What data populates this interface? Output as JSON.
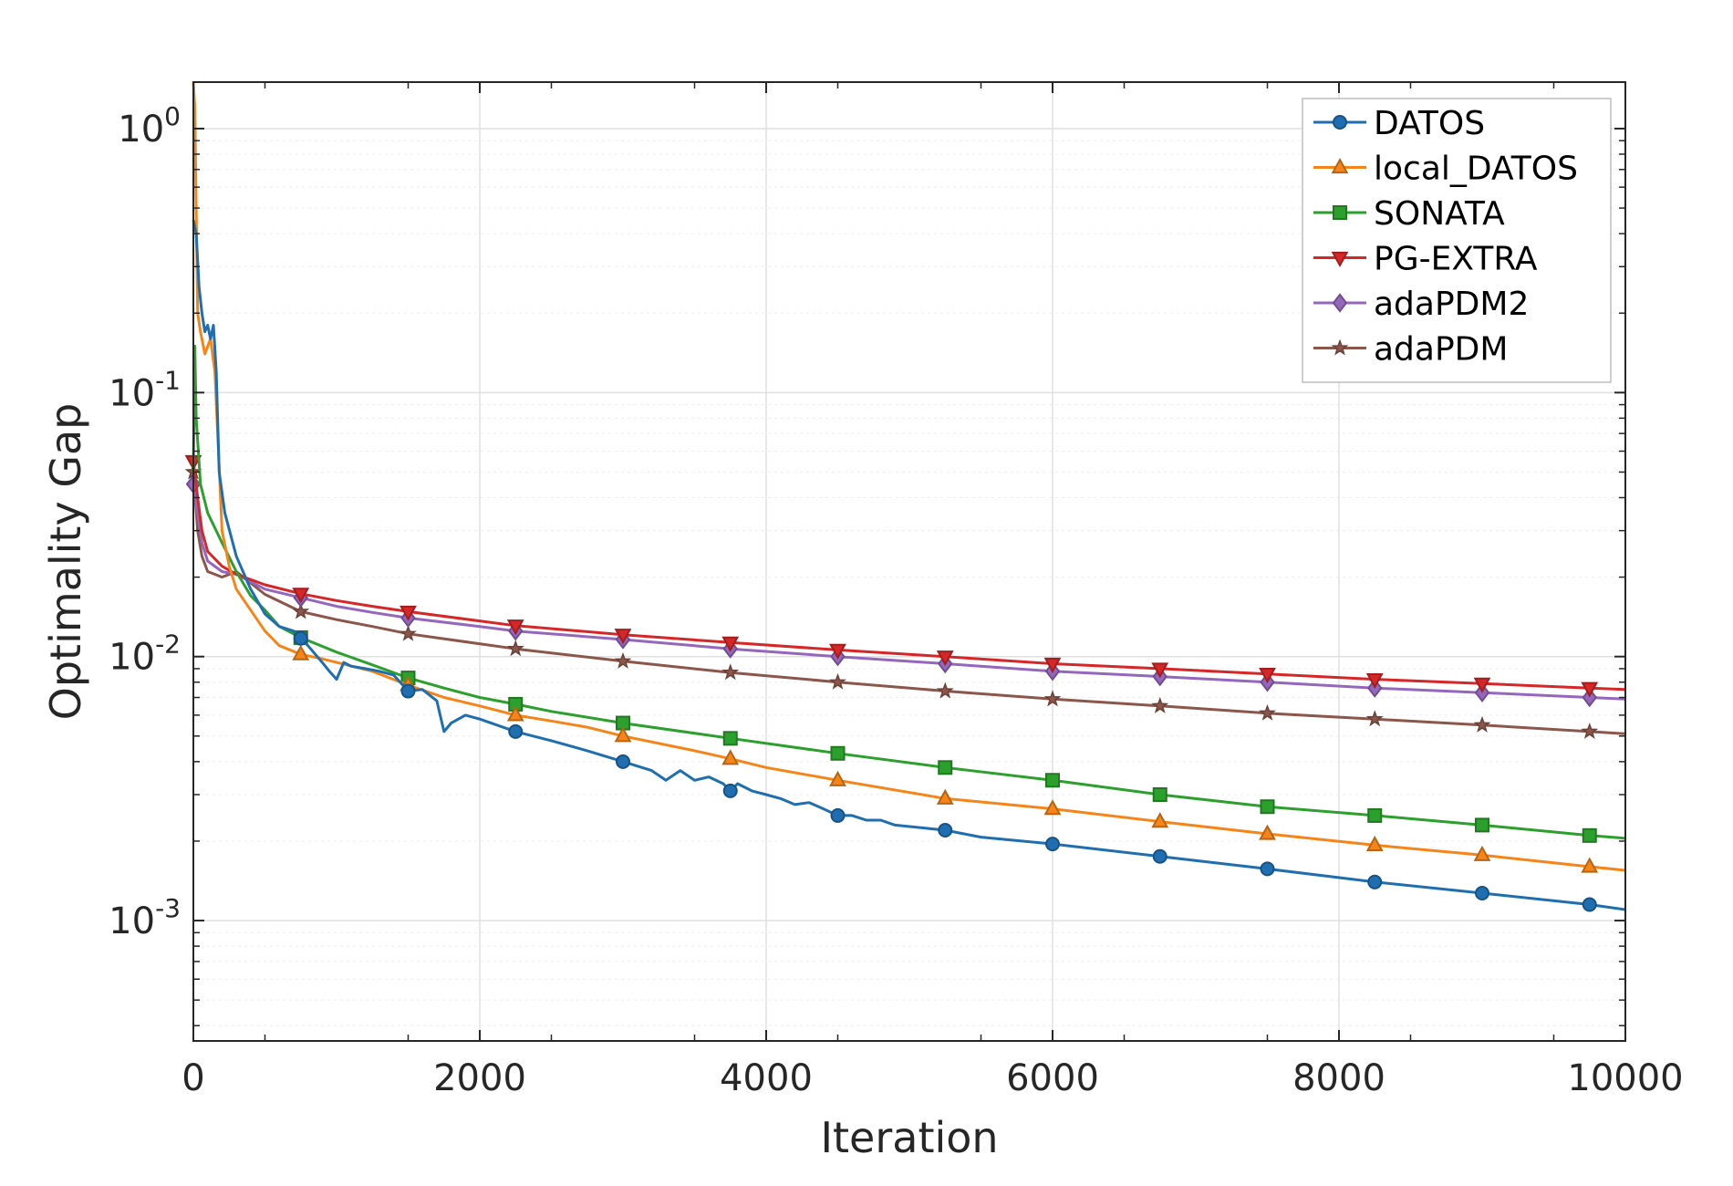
{
  "chart_data": {
    "type": "line",
    "title": "",
    "xlabel": "Iteration",
    "ylabel": "Optimality Gap",
    "x_scale": "linear",
    "y_scale": "log",
    "xlim": [
      0,
      10000
    ],
    "ylim": [
      0.00035,
      1.5
    ],
    "grid": true,
    "legend_position": "top-right",
    "x_ticks": [
      {
        "value": 0,
        "label": "0"
      },
      {
        "value": 2000,
        "label": "2000"
      },
      {
        "value": 4000,
        "label": "4000"
      },
      {
        "value": 6000,
        "label": "6000"
      },
      {
        "value": 8000,
        "label": "8000"
      },
      {
        "value": 10000,
        "label": "10000"
      }
    ],
    "y_ticks": [
      {
        "value": 0.001,
        "base": "10",
        "exp": "-3"
      },
      {
        "value": 0.01,
        "base": "10",
        "exp": "-2"
      },
      {
        "value": 0.1,
        "base": "10",
        "exp": "-1"
      },
      {
        "value": 1,
        "base": "10",
        "exp": "0"
      }
    ],
    "series": [
      {
        "name": "DATOS",
        "color": "#1f6fb0",
        "marker": "circle",
        "line": [
          [
            0,
            0.45
          ],
          [
            20,
            0.4
          ],
          [
            40,
            0.25
          ],
          [
            60,
            0.2
          ],
          [
            80,
            0.17
          ],
          [
            100,
            0.18
          ],
          [
            120,
            0.16
          ],
          [
            140,
            0.18
          ],
          [
            160,
            0.12
          ],
          [
            180,
            0.05
          ],
          [
            220,
            0.035
          ],
          [
            300,
            0.024
          ],
          [
            400,
            0.018
          ],
          [
            500,
            0.0145
          ],
          [
            600,
            0.013
          ],
          [
            700,
            0.0125
          ],
          [
            800,
            0.011
          ],
          [
            900,
            0.0095
          ],
          [
            950,
            0.0088
          ],
          [
            1000,
            0.0082
          ],
          [
            1050,
            0.0095
          ],
          [
            1100,
            0.0092
          ],
          [
            1200,
            0.009
          ],
          [
            1300,
            0.0088
          ],
          [
            1400,
            0.0085
          ],
          [
            1500,
            0.0074
          ],
          [
            1600,
            0.0075
          ],
          [
            1700,
            0.0068
          ],
          [
            1750,
            0.0052
          ],
          [
            1800,
            0.0056
          ],
          [
            1900,
            0.006
          ],
          [
            2000,
            0.0058
          ],
          [
            2250,
            0.0052
          ],
          [
            2500,
            0.0048
          ],
          [
            2750,
            0.0044
          ],
          [
            3000,
            0.004
          ],
          [
            3200,
            0.0037
          ],
          [
            3300,
            0.0034
          ],
          [
            3400,
            0.0037
          ],
          [
            3500,
            0.0034
          ],
          [
            3600,
            0.0035
          ],
          [
            3700,
            0.0033
          ],
          [
            3750,
            0.0031
          ],
          [
            3800,
            0.0033
          ],
          [
            3900,
            0.0031
          ],
          [
            4000,
            0.003
          ],
          [
            4100,
            0.0029
          ],
          [
            4200,
            0.00275
          ],
          [
            4300,
            0.0028
          ],
          [
            4400,
            0.00265
          ],
          [
            4500,
            0.0025
          ],
          [
            4600,
            0.0025
          ],
          [
            4700,
            0.0024
          ],
          [
            4800,
            0.0024
          ],
          [
            4900,
            0.0023
          ],
          [
            5250,
            0.0022
          ],
          [
            5500,
            0.00207
          ],
          [
            6000,
            0.00195
          ],
          [
            6750,
            0.00175
          ],
          [
            7500,
            0.00157
          ],
          [
            8250,
            0.0014
          ],
          [
            9000,
            0.00127
          ],
          [
            9750,
            0.00115
          ],
          [
            10000,
            0.0011
          ]
        ],
        "markers_x": [
          750,
          1500,
          2250,
          3000,
          3750,
          4500,
          5250,
          6000,
          6750,
          7500,
          8250,
          9000,
          9750
        ]
      },
      {
        "name": "local_DATOS",
        "color": "#f58518",
        "marker": "triangle-up",
        "line": [
          [
            0,
            1.5
          ],
          [
            10,
            1.2
          ],
          [
            20,
            0.5
          ],
          [
            30,
            0.2
          ],
          [
            50,
            0.17
          ],
          [
            80,
            0.14
          ],
          [
            120,
            0.16
          ],
          [
            150,
            0.12
          ],
          [
            200,
            0.03
          ],
          [
            250,
            0.022
          ],
          [
            300,
            0.018
          ],
          [
            400,
            0.015
          ],
          [
            500,
            0.0125
          ],
          [
            600,
            0.011
          ],
          [
            750,
            0.0102
          ],
          [
            900,
            0.0098
          ],
          [
            1000,
            0.0095
          ],
          [
            1250,
            0.0088
          ],
          [
            1500,
            0.0078
          ],
          [
            1750,
            0.007
          ],
          [
            2000,
            0.0065
          ],
          [
            2250,
            0.006
          ],
          [
            2500,
            0.0057
          ],
          [
            2750,
            0.0054
          ],
          [
            3000,
            0.005
          ],
          [
            3500,
            0.0044
          ],
          [
            3750,
            0.0041
          ],
          [
            4000,
            0.0038
          ],
          [
            4500,
            0.0034
          ],
          [
            5250,
            0.0029
          ],
          [
            6000,
            0.00265
          ],
          [
            6750,
            0.00237
          ],
          [
            7500,
            0.00213
          ],
          [
            8250,
            0.00193
          ],
          [
            9000,
            0.00177
          ],
          [
            9750,
            0.0016
          ],
          [
            10000,
            0.00155
          ]
        ],
        "markers_x": [
          750,
          1500,
          2250,
          3000,
          3750,
          4500,
          5250,
          6000,
          6750,
          7500,
          8250,
          9000,
          9750
        ]
      },
      {
        "name": "SONATA",
        "color": "#2ca02c",
        "marker": "square",
        "line": [
          [
            0,
            0.05
          ],
          [
            10,
            0.15
          ],
          [
            20,
            0.08
          ],
          [
            50,
            0.045
          ],
          [
            100,
            0.035
          ],
          [
            200,
            0.027
          ],
          [
            300,
            0.021
          ],
          [
            400,
            0.017
          ],
          [
            500,
            0.015
          ],
          [
            600,
            0.013
          ],
          [
            750,
            0.0118
          ],
          [
            1000,
            0.0104
          ],
          [
            1250,
            0.0093
          ],
          [
            1500,
            0.0083
          ],
          [
            1750,
            0.0076
          ],
          [
            2000,
            0.007
          ],
          [
            2250,
            0.0066
          ],
          [
            2500,
            0.0062
          ],
          [
            3000,
            0.0056
          ],
          [
            3750,
            0.0049
          ],
          [
            4500,
            0.0043
          ],
          [
            5250,
            0.0038
          ],
          [
            6000,
            0.0034
          ],
          [
            6750,
            0.003
          ],
          [
            7500,
            0.0027
          ],
          [
            8250,
            0.0025
          ],
          [
            9000,
            0.0023
          ],
          [
            9750,
            0.0021
          ],
          [
            10000,
            0.00205
          ]
        ],
        "markers_x": [
          750,
          1500,
          2250,
          3000,
          3750,
          4500,
          5250,
          6000,
          6750,
          7500,
          8250,
          9000,
          9750
        ]
      },
      {
        "name": "PG-EXTRA",
        "color": "#d62728",
        "marker": "triangle-down",
        "line": [
          [
            0,
            0.055
          ],
          [
            30,
            0.04
          ],
          [
            60,
            0.03
          ],
          [
            100,
            0.025
          ],
          [
            200,
            0.022
          ],
          [
            300,
            0.0205
          ],
          [
            500,
            0.0187
          ],
          [
            750,
            0.0173
          ],
          [
            1000,
            0.0163
          ],
          [
            1250,
            0.0155
          ],
          [
            1500,
            0.0148
          ],
          [
            2250,
            0.0131
          ],
          [
            3000,
            0.0121
          ],
          [
            3750,
            0.0113
          ],
          [
            4500,
            0.0106
          ],
          [
            5250,
            0.01
          ],
          [
            6000,
            0.0094
          ],
          [
            6750,
            0.009
          ],
          [
            7500,
            0.0086
          ],
          [
            8250,
            0.0082
          ],
          [
            9000,
            0.0079
          ],
          [
            9750,
            0.0076
          ],
          [
            10000,
            0.0075
          ]
        ],
        "markers_x": [
          0,
          750,
          1500,
          2250,
          3000,
          3750,
          4500,
          5250,
          6000,
          6750,
          7500,
          8250,
          9000,
          9750
        ]
      },
      {
        "name": "adaPDM2",
        "color": "#9467bd",
        "marker": "diamond",
        "line": [
          [
            0,
            0.045
          ],
          [
            30,
            0.035
          ],
          [
            60,
            0.027
          ],
          [
            100,
            0.023
          ],
          [
            200,
            0.021
          ],
          [
            300,
            0.0205
          ],
          [
            500,
            0.018
          ],
          [
            750,
            0.0167
          ],
          [
            1000,
            0.0155
          ],
          [
            1250,
            0.0147
          ],
          [
            1500,
            0.014
          ],
          [
            2000,
            0.013
          ],
          [
            2250,
            0.0125
          ],
          [
            3000,
            0.0116
          ],
          [
            3750,
            0.0107
          ],
          [
            4500,
            0.01
          ],
          [
            5250,
            0.0094
          ],
          [
            6000,
            0.0088
          ],
          [
            6750,
            0.0084
          ],
          [
            7500,
            0.008
          ],
          [
            8250,
            0.0076
          ],
          [
            9000,
            0.0073
          ],
          [
            9750,
            0.007
          ],
          [
            10000,
            0.0069
          ]
        ],
        "markers_x": [
          0,
          750,
          1500,
          2250,
          3000,
          3750,
          4500,
          5250,
          6000,
          6750,
          7500,
          8250,
          9000,
          9750
        ]
      },
      {
        "name": "adaPDM",
        "color": "#8c564b",
        "marker": "star",
        "line": [
          [
            0,
            0.05
          ],
          [
            30,
            0.03
          ],
          [
            60,
            0.024
          ],
          [
            100,
            0.021
          ],
          [
            150,
            0.0205
          ],
          [
            200,
            0.02
          ],
          [
            300,
            0.021
          ],
          [
            400,
            0.019
          ],
          [
            500,
            0.0172
          ],
          [
            750,
            0.0148
          ],
          [
            1000,
            0.0138
          ],
          [
            1250,
            0.013
          ],
          [
            1500,
            0.0122
          ],
          [
            2250,
            0.0107
          ],
          [
            3000,
            0.0096
          ],
          [
            3750,
            0.0087
          ],
          [
            4500,
            0.008
          ],
          [
            5250,
            0.0074
          ],
          [
            6000,
            0.0069
          ],
          [
            6750,
            0.0065
          ],
          [
            7500,
            0.0061
          ],
          [
            8250,
            0.0058
          ],
          [
            9000,
            0.0055
          ],
          [
            9750,
            0.0052
          ],
          [
            10000,
            0.0051
          ]
        ],
        "markers_x": [
          0,
          750,
          1500,
          2250,
          3000,
          3750,
          4500,
          5250,
          6000,
          6750,
          7500,
          8250,
          9000,
          9750
        ]
      }
    ]
  }
}
